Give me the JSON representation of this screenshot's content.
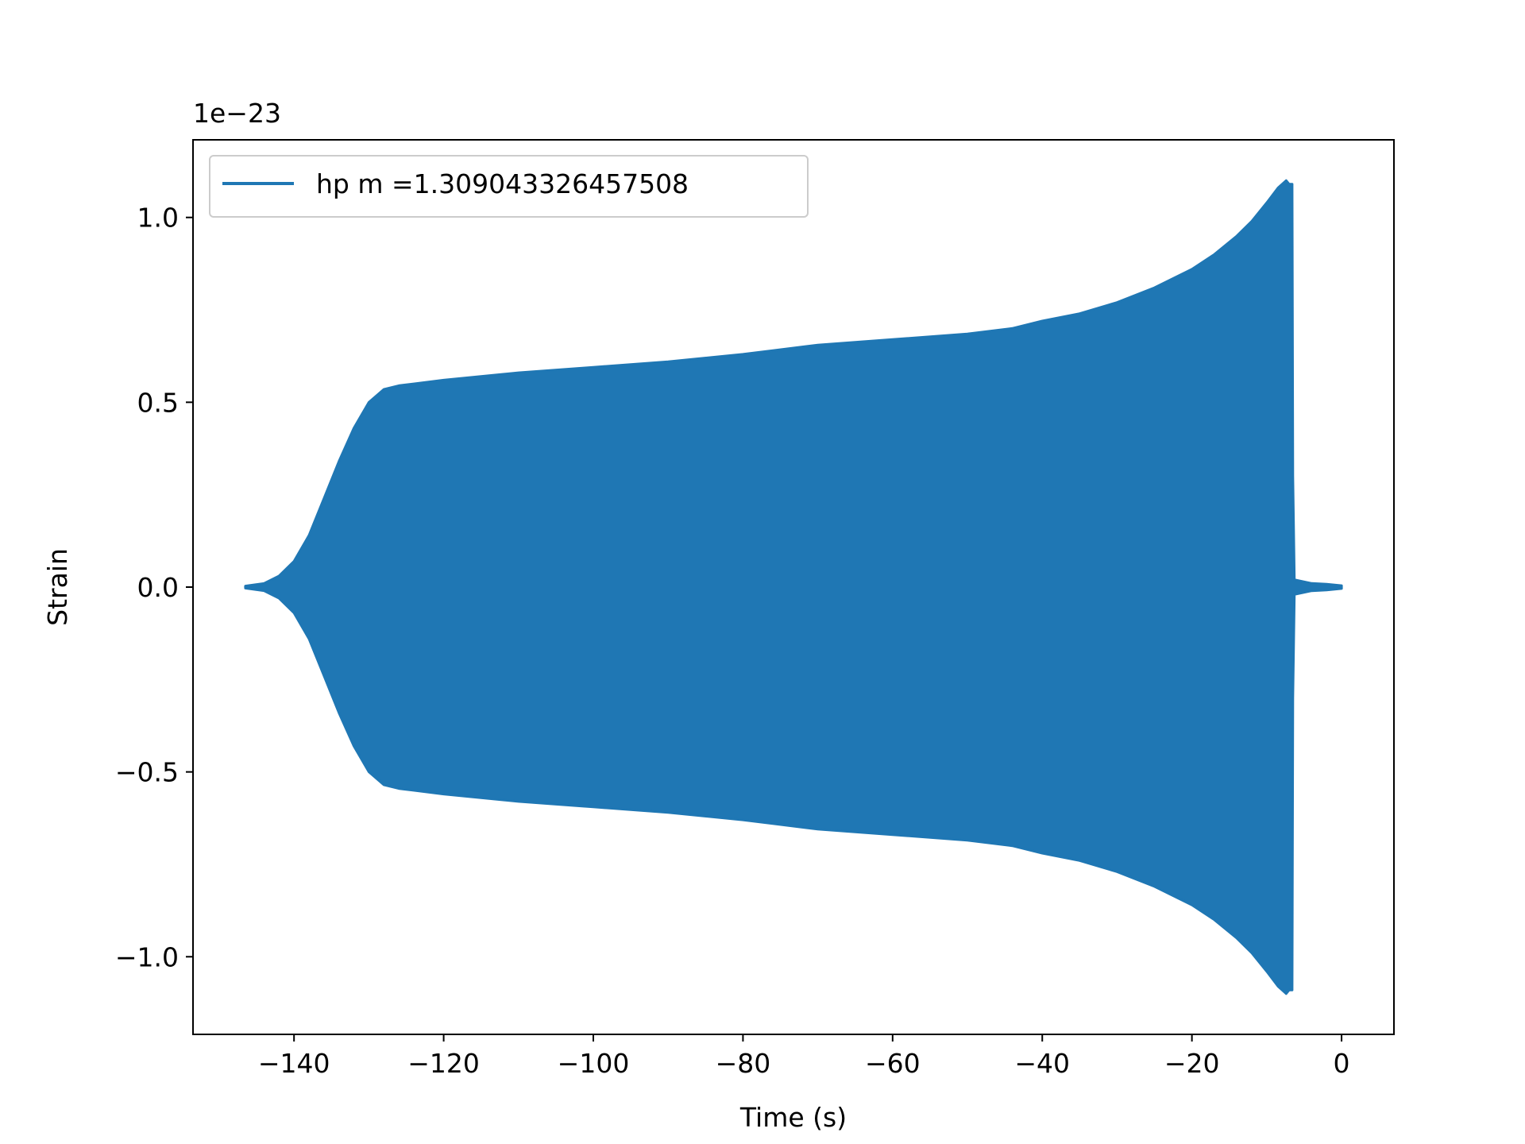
{
  "chart_data": {
    "type": "area",
    "xlabel": "Time (s)",
    "ylabel": "Strain",
    "offset_label": "1e−23",
    "xlim": [
      -153.5,
      7.0
    ],
    "ylim": [
      -1.21,
      1.21
    ],
    "x_ticks": [
      -140,
      -120,
      -100,
      -80,
      -60,
      -40,
      -20,
      0
    ],
    "x_tick_labels": [
      "−140",
      "−120",
      "−100",
      "−80",
      "−60",
      "−40",
      "−20",
      "0"
    ],
    "y_ticks": [
      -1.0,
      -0.5,
      0.0,
      0.5,
      1.0
    ],
    "y_tick_labels": [
      "−1.0",
      "−0.5",
      "0.0",
      "0.5",
      "1.0"
    ],
    "grid": false,
    "legend_position": "top-left",
    "series": [
      {
        "name": "hp m =1.309043326457508",
        "color": "#1f77b4",
        "envelope": {
          "x": [
            -146.5,
            -144.0,
            -142.0,
            -140.0,
            -138.0,
            -136.0,
            -134.0,
            -132.0,
            -130.0,
            -128.0,
            -126.0,
            -124.0,
            -120.0,
            -110.0,
            -100.0,
            -90.0,
            -80.0,
            -76.0,
            -70.0,
            -60.0,
            -50.0,
            -44.0,
            -40.0,
            -35.0,
            -30.0,
            -25.0,
            -20.0,
            -17.0,
            -14.0,
            -12.0,
            -10.0,
            -8.5,
            -7.4,
            -7.0,
            -6.6,
            -6.5,
            -6.3,
            -4.0,
            -2.0,
            0.0
          ],
          "upper": [
            0.003,
            0.01,
            0.03,
            0.07,
            0.14,
            0.24,
            0.34,
            0.43,
            0.5,
            0.535,
            0.545,
            0.55,
            0.56,
            0.58,
            0.595,
            0.61,
            0.63,
            0.64,
            0.655,
            0.67,
            0.685,
            0.7,
            0.72,
            0.74,
            0.77,
            0.81,
            0.86,
            0.9,
            0.95,
            0.99,
            1.04,
            1.08,
            1.1,
            1.09,
            1.09,
            0.3,
            0.02,
            0.01,
            0.008,
            0.004
          ],
          "lower": [
            -0.003,
            -0.01,
            -0.03,
            -0.07,
            -0.14,
            -0.24,
            -0.34,
            -0.43,
            -0.5,
            -0.535,
            -0.545,
            -0.55,
            -0.56,
            -0.58,
            -0.595,
            -0.61,
            -0.63,
            -0.64,
            -0.655,
            -0.67,
            -0.685,
            -0.7,
            -0.72,
            -0.74,
            -0.77,
            -0.81,
            -0.86,
            -0.9,
            -0.95,
            -0.99,
            -1.04,
            -1.08,
            -1.1,
            -1.09,
            -1.09,
            -0.3,
            -0.02,
            -0.01,
            -0.008,
            -0.004
          ]
        }
      }
    ]
  }
}
